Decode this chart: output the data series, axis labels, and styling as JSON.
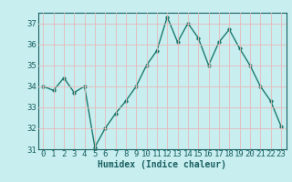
{
  "x": [
    0,
    1,
    2,
    3,
    4,
    5,
    6,
    7,
    8,
    9,
    10,
    11,
    12,
    13,
    14,
    15,
    16,
    17,
    18,
    19,
    20,
    21,
    22,
    23
  ],
  "y": [
    34,
    33.8,
    34.4,
    33.7,
    34,
    31.1,
    32.0,
    32.7,
    33.3,
    34,
    35,
    35.7,
    37.3,
    36.1,
    37,
    36.3,
    35,
    36.1,
    36.7,
    35.8,
    35,
    34,
    33.3,
    32.1
  ],
  "line_color": "#1a7a6e",
  "marker": "o",
  "markersize": 2.5,
  "linewidth": 1.0,
  "bg_color": "#c8eef0",
  "grid_color": "#e8b8b8",
  "tick_color": "#1a6060",
  "xlabel": "Humidex (Indice chaleur)",
  "ylim": [
    31,
    37.5
  ],
  "xlim": [
    -0.5,
    23.5
  ],
  "yticks": [
    31,
    32,
    33,
    34,
    35,
    36,
    37
  ],
  "xticks": [
    0,
    1,
    2,
    3,
    4,
    5,
    6,
    7,
    8,
    9,
    10,
    11,
    12,
    13,
    14,
    15,
    16,
    17,
    18,
    19,
    20,
    21,
    22,
    23
  ],
  "xlabel_fontsize": 7,
  "tick_fontsize": 6.5
}
